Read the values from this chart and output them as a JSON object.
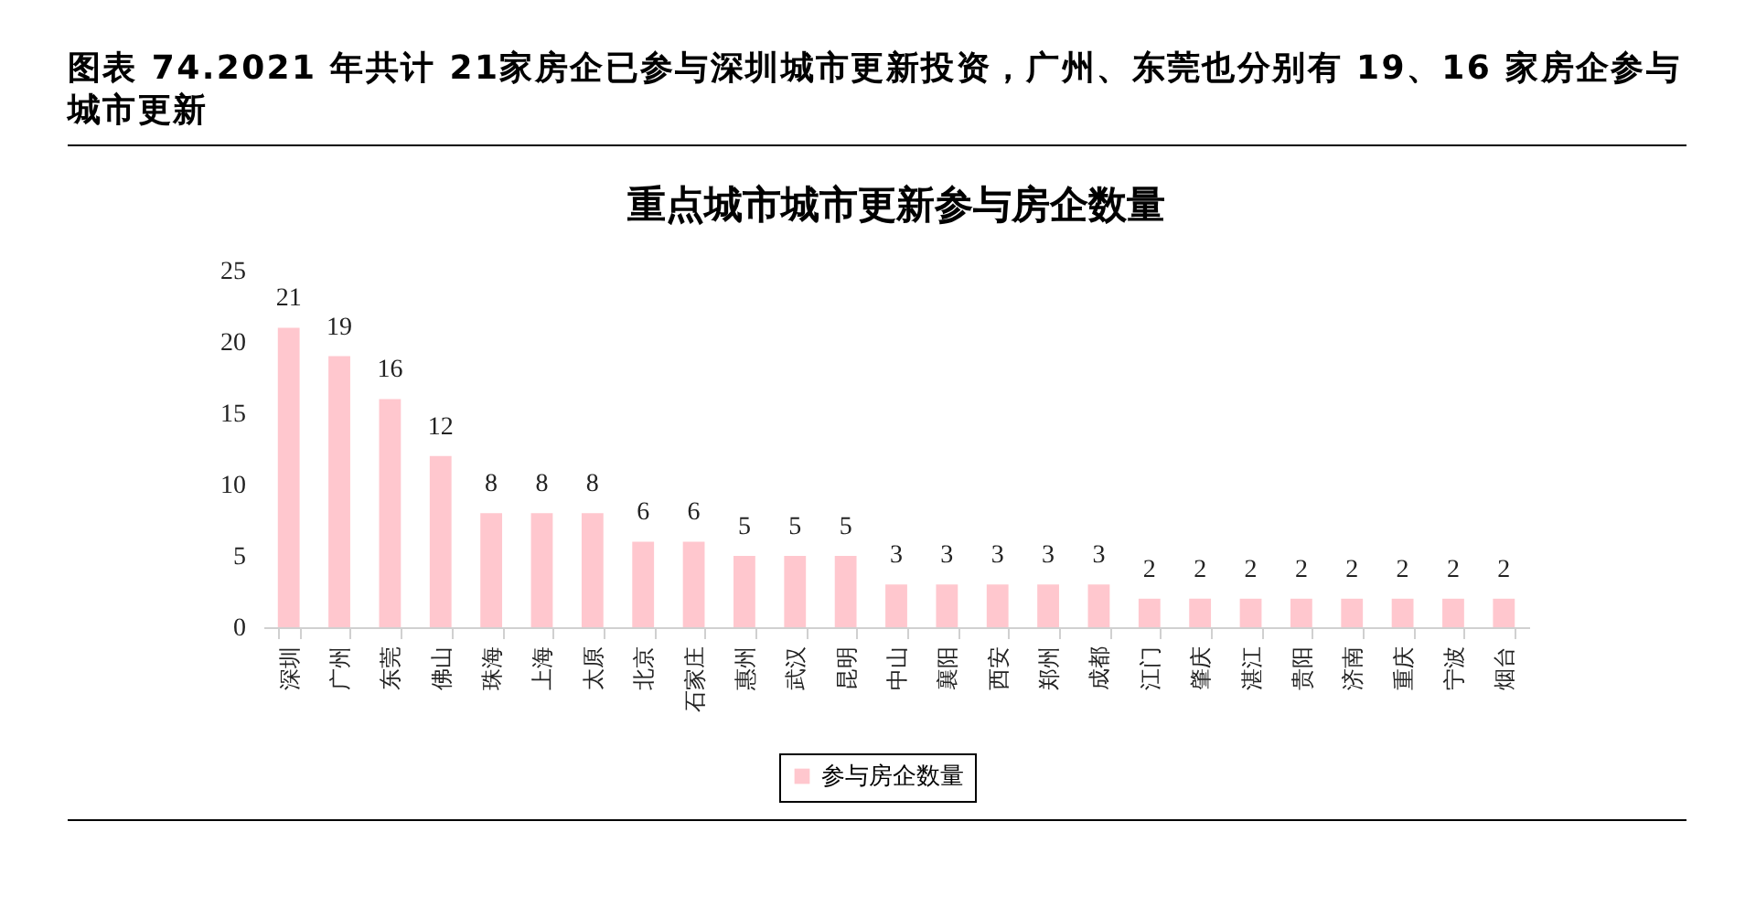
{
  "chart_data": {
    "type": "bar",
    "title": "图表 74.2021 年共计 21家房企已参与深圳城市更新投资，广州、东莞也分别有 19、16 家房企参与城市更新",
    "subtitle": "重点城市城市更新参与房企数量",
    "categories": [
      "深圳",
      "广州",
      "东莞",
      "佛山",
      "珠海",
      "上海",
      "太原",
      "北京",
      "石家庄",
      "惠州",
      "武汉",
      "昆明",
      "中山",
      "襄阳",
      "西安",
      "郑州",
      "成都",
      "江门",
      "肇庆",
      "湛江",
      "贵阳",
      "济南",
      "重庆",
      "宁波",
      "烟台"
    ],
    "series": [
      {
        "name": "参与房企数量",
        "color": "#ffc7ce",
        "values": [
          21,
          19,
          16,
          12,
          8,
          8,
          8,
          6,
          6,
          5,
          5,
          5,
          3,
          3,
          3,
          3,
          3,
          2,
          2,
          2,
          2,
          2,
          2,
          2,
          2
        ]
      }
    ],
    "ylim": [
      0,
      25
    ],
    "yticks": [
      0,
      5,
      10,
      15,
      20,
      25
    ],
    "data_labels": true,
    "legend": "bottom"
  }
}
